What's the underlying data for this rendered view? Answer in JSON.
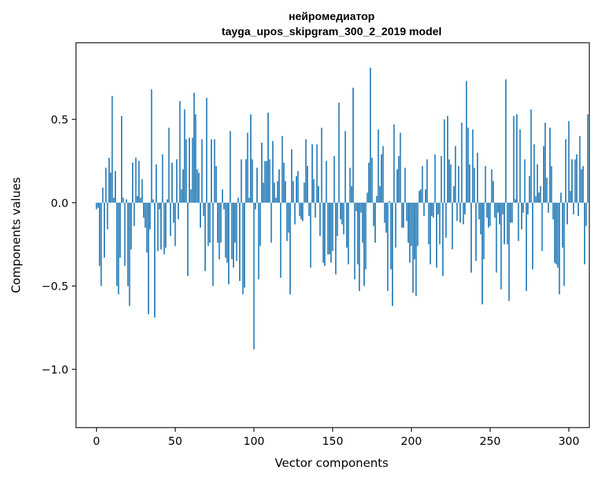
{
  "chart_data": {
    "type": "bar",
    "title": [
      "нейромедиатор",
      "tayga_upos_skipgram_300_2_2019 model"
    ],
    "xlabel": "Vector components",
    "ylabel": "Components values",
    "xlim": [
      -13,
      313
    ],
    "ylim": [
      -1.35,
      0.96
    ],
    "xticks": [
      0,
      50,
      100,
      150,
      200,
      250,
      300
    ],
    "yticks": [
      -1.0,
      -0.5,
      0.0,
      0.5
    ],
    "ytick_labels": [
      "−1.0",
      "−0.5",
      "0.0",
      "0.5"
    ],
    "bar_color": "#1f77b4",
    "values": [
      -0.04,
      -0.03,
      -0.38,
      -0.5,
      0.09,
      -0.33,
      0.21,
      -0.16,
      0.27,
      0.18,
      0.64,
      0.03,
      0.19,
      -0.5,
      -0.55,
      -0.33,
      0.52,
      0.03,
      -0.38,
      0.02,
      -0.5,
      -0.62,
      -0.28,
      0.24,
      -0.14,
      0.27,
      0.04,
      0.25,
      0.03,
      0.14,
      -0.09,
      -0.15,
      -0.3,
      -0.67,
      -0.16,
      0.68,
      0.02,
      -0.69,
      0.23,
      -0.29,
      -0.04,
      -0.28,
      0.29,
      -0.31,
      -0.27,
      0.02,
      0.45,
      -0.2,
      0.24,
      -0.12,
      -0.26,
      0.26,
      -0.1,
      0.61,
      0.08,
      0.2,
      0.56,
      0.38,
      -0.44,
      0.39,
      0.08,
      0.39,
      0.66,
      0.53,
      0.2,
      0.18,
      -0.15,
      0.38,
      -0.08,
      -0.41,
      0.63,
      -0.26,
      -0.24,
      0.38,
      -0.5,
      0.38,
      0.22,
      -0.24,
      -0.34,
      -0.24,
      0.08,
      -0.04,
      -0.33,
      -0.36,
      -0.49,
      0.43,
      -0.34,
      -0.39,
      -0.24,
      -0.35,
      0.03,
      -0.47,
      0.26,
      -0.55,
      -0.51,
      0.26,
      0.42,
      0.03,
      0.53,
      0.26,
      -0.88,
      -0.04,
      0.21,
      -0.46,
      -0.26,
      0.36,
      0.12,
      0.25,
      0.25,
      0.54,
      0.26,
      -0.24,
      0.37,
      0.12,
      0.03,
      0.13,
      0.2,
      -0.45,
      0.4,
      0.24,
      0.13,
      -0.23,
      -0.18,
      -0.55,
      0.32,
      0.13,
      -0.13,
      0.16,
      0.19,
      -0.08,
      -0.1,
      -0.11,
      0.12,
      0.38,
      0.22,
      -0.08,
      -0.39,
      0.35,
      0.14,
      -0.09,
      0.35,
      0.1,
      -0.2,
      0.45,
      -0.36,
      -0.38,
      0.25,
      -0.31,
      -0.31,
      -0.36,
      -0.29,
      0.28,
      -0.43,
      -0.2,
      0.6,
      -0.1,
      -0.13,
      -0.19,
      0.43,
      -0.27,
      -0.37,
      0.21,
      0.1,
      0.69,
      -0.46,
      -0.05,
      -0.37,
      -0.53,
      -0.06,
      -0.24,
      -0.5,
      -0.4,
      0.06,
      0.24,
      0.81,
      0.27,
      -0.14,
      -0.24,
      0.04,
      0.44,
      0.1,
      0.29,
      0.34,
      -0.12,
      -0.18,
      -0.53,
      0.01,
      -0.4,
      -0.62,
      0.47,
      -0.27,
      0.2,
      0.28,
      0.42,
      -0.15,
      -0.15,
      0.21,
      -0.11,
      -0.24,
      -0.36,
      -0.26,
      -0.54,
      -0.34,
      -0.56,
      -0.26,
      0.07,
      0.08,
      0.22,
      -0.08,
      0.08,
      0.26,
      -0.25,
      -0.37,
      -0.08,
      -0.09,
      0.29,
      -0.39,
      -0.07,
      -0.25,
      0.28,
      -0.44,
      0.5,
      -0.21,
      0.52,
      0.26,
      0.23,
      -0.28,
      0.1,
      0.34,
      -0.11,
      0.22,
      -0.12,
      0.48,
      -0.13,
      -0.07,
      0.73,
      0.45,
      0.23,
      -0.42,
      0.44,
      0.21,
      -0.35,
      0.3,
      -0.1,
      -0.19,
      -0.61,
      -0.34,
      0.22,
      -0.09,
      -0.15,
      -0.14,
      0.2,
      0.13,
      -0.09,
      -0.42,
      -0.06,
      -0.13,
      -0.52,
      -0.07,
      -0.25,
      0.74,
      -0.25,
      -0.59,
      -0.12,
      -0.12,
      0.52,
      0.02,
      0.53,
      -0.23,
      0.44,
      -0.16,
      -0.06,
      0.26,
      -0.53,
      -0.07,
      0.16,
      0.56,
      -0.4,
      0.35,
      0.04,
      0.23,
      0.06,
      0.1,
      -0.29,
      0.34,
      0.48,
      0.15,
      -0.06,
      0.45,
      0.22,
      -0.1,
      -0.36,
      -0.37,
      -0.39,
      -0.55,
      0.06,
      -0.27,
      -0.5,
      0.38,
      -0.13,
      0.49,
      0.07,
      0.26,
      -0.07,
      0.26,
      0.29,
      -0.08,
      0.4,
      0.2,
      0.22,
      -0.37,
      -0.14,
      0.53
    ]
  }
}
